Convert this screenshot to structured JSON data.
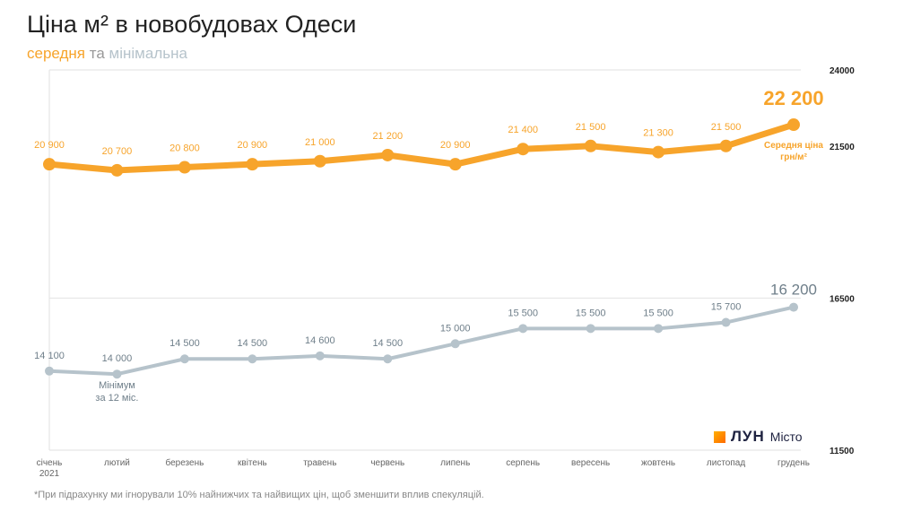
{
  "title": "Ціна м² в новобудовах Одеси",
  "subtitle": {
    "avg": "середня",
    "and": "та",
    "min": "мінімальна"
  },
  "footnote": "*При підрахунку ми ігнорували 10% найнижчих та найвищих цін, щоб зменшити вплив спекуляцій.",
  "logo": {
    "brand": "ЛУН",
    "sub": "Місто"
  },
  "chart_data": {
    "type": "line",
    "categories": [
      "січень 2021",
      "лютий",
      "березень",
      "квітень",
      "травень",
      "червень",
      "липень",
      "серпень",
      "вересень",
      "жовтень",
      "листопад",
      "грудень"
    ],
    "yticks": [
      24000,
      21500,
      16500,
      11500
    ],
    "ylim": [
      11500,
      24000
    ],
    "series": [
      {
        "name": "середня",
        "color": "#f7a42b",
        "values": [
          20900,
          20700,
          20800,
          20900,
          21000,
          21200,
          20900,
          21400,
          21500,
          21300,
          21500,
          22200
        ],
        "labels": [
          "20 900",
          "20 700",
          "20 800",
          "20 900",
          "21 000",
          "21 200",
          "20 900",
          "21 400",
          "21 500",
          "21 300",
          "21 500",
          "22 200"
        ],
        "annotation": [
          "Середня ціна",
          "грн/м²"
        ]
      },
      {
        "name": "мінімальна",
        "color": "#b6c3cb",
        "values": [
          14100,
          14000,
          14500,
          14500,
          14600,
          14500,
          15000,
          15500,
          15500,
          15500,
          15700,
          16200
        ],
        "labels": [
          "14 100",
          "14 000",
          "14 500",
          "14 500",
          "14 600",
          "14 500",
          "15 000",
          "15 500",
          "15 500",
          "15 500",
          "15 700",
          "16 200"
        ],
        "annotation": [
          "Мінімум",
          "за 12 міс."
        ]
      }
    ]
  }
}
